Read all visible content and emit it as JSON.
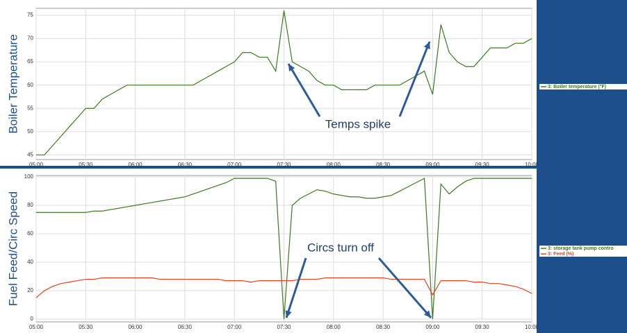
{
  "chart_data": [
    {
      "type": "line",
      "y_label": "Boiler Temperature",
      "annotation": "Temps spike",
      "x": [
        "05:00",
        "05:05",
        "05:10",
        "05:15",
        "05:20",
        "05:25",
        "05:30",
        "05:35",
        "05:40",
        "05:45",
        "05:50",
        "05:55",
        "06:00",
        "06:05",
        "06:10",
        "06:15",
        "06:20",
        "06:25",
        "06:30",
        "06:35",
        "06:40",
        "06:45",
        "06:50",
        "06:55",
        "07:00",
        "07:05",
        "07:10",
        "07:15",
        "07:20",
        "07:25",
        "07:30",
        "07:35",
        "07:40",
        "07:45",
        "07:50",
        "07:55",
        "08:00",
        "08:05",
        "08:10",
        "08:15",
        "08:20",
        "08:25",
        "08:30",
        "08:35",
        "08:40",
        "08:45",
        "08:50",
        "08:55",
        "09:00",
        "09:05",
        "09:10",
        "09:15",
        "09:20",
        "09:25",
        "09:30",
        "09:35",
        "09:40",
        "09:45",
        "09:50",
        "09:55",
        "10:00"
      ],
      "series": [
        {
          "name": "3: Boiler temperature (°F)",
          "color": "#3a7a1e",
          "values": [
            45,
            45,
            47,
            49,
            51,
            53,
            55,
            55,
            57,
            58,
            59,
            60,
            60,
            60,
            60,
            60,
            60,
            60,
            60,
            60,
            61,
            62,
            63,
            64,
            65,
            67,
            67,
            66,
            66,
            63,
            76,
            65,
            64,
            63,
            61,
            60,
            60,
            59,
            59,
            59,
            59,
            60,
            60,
            60,
            60,
            61,
            62,
            63,
            58,
            73,
            67,
            65,
            64,
            64,
            66,
            68,
            68,
            68,
            69,
            69,
            70
          ]
        }
      ],
      "xlim": [
        "05:00",
        "10:00"
      ],
      "xticks": [
        "05:00",
        "05:30",
        "06:00",
        "06:30",
        "07:00",
        "07:30",
        "08:00",
        "08:30",
        "09:00",
        "09:30",
        "10:00"
      ],
      "ylim": [
        44,
        76.5
      ],
      "yticks": [
        45,
        50,
        55,
        60,
        65,
        70,
        75
      ],
      "grid": true
    },
    {
      "type": "line",
      "y_label": "Fuel Feed/Circ Speed",
      "annotation": "Circs turn off",
      "x": [
        "05:00",
        "05:05",
        "05:10",
        "05:15",
        "05:20",
        "05:25",
        "05:30",
        "05:35",
        "05:40",
        "05:45",
        "05:50",
        "05:55",
        "06:00",
        "06:05",
        "06:10",
        "06:15",
        "06:20",
        "06:25",
        "06:30",
        "06:35",
        "06:40",
        "06:45",
        "06:50",
        "06:55",
        "07:00",
        "07:05",
        "07:10",
        "07:15",
        "07:20",
        "07:25",
        "07:30",
        "07:35",
        "07:40",
        "07:45",
        "07:50",
        "07:55",
        "08:00",
        "08:05",
        "08:10",
        "08:15",
        "08:20",
        "08:25",
        "08:30",
        "08:35",
        "08:40",
        "08:45",
        "08:50",
        "08:55",
        "09:00",
        "09:05",
        "09:10",
        "09:15",
        "09:20",
        "09:25",
        "09:30",
        "09:35",
        "09:40",
        "09:45",
        "09:50",
        "09:55",
        "10:00"
      ],
      "series": [
        {
          "name": "3: storage tank pump contro",
          "color": "#3a7a1e",
          "values": [
            75,
            75,
            75,
            75,
            75,
            75,
            75,
            76,
            76,
            77,
            78,
            79,
            80,
            81,
            82,
            83,
            84,
            85,
            86,
            88,
            90,
            92,
            94,
            96,
            99,
            99,
            99,
            99,
            99,
            97,
            0,
            80,
            85,
            88,
            91,
            90,
            88,
            87,
            86,
            86,
            85,
            85,
            86,
            87,
            90,
            93,
            96,
            99,
            0,
            95,
            88,
            93,
            97,
            99,
            99,
            99,
            99,
            99,
            99,
            99,
            99
          ]
        },
        {
          "name": "3: Feed (%)",
          "color": "#e8401c",
          "values": [
            15,
            20,
            23,
            25,
            26,
            27,
            28,
            28,
            29,
            29,
            29,
            29,
            29,
            29,
            29,
            28,
            28,
            28,
            28,
            28,
            28,
            28,
            28,
            27,
            27,
            27,
            26,
            27,
            27,
            27,
            27,
            27,
            28,
            28,
            28,
            29,
            29,
            29,
            29,
            29,
            29,
            29,
            29,
            28,
            28,
            28,
            28,
            28,
            17,
            27,
            27,
            27,
            27,
            26,
            26,
            25,
            25,
            24,
            23,
            21,
            18
          ]
        }
      ],
      "xlim": [
        "05:00",
        "10:00"
      ],
      "xticks": [
        "05:00",
        "05:30",
        "06:00",
        "06:30",
        "07:00",
        "07:30",
        "08:00",
        "08:30",
        "09:00",
        "09:30",
        "10:00"
      ],
      "ylim": [
        -2,
        101
      ],
      "yticks": [
        0,
        20,
        40,
        60,
        80,
        100
      ],
      "grid": true
    }
  ]
}
